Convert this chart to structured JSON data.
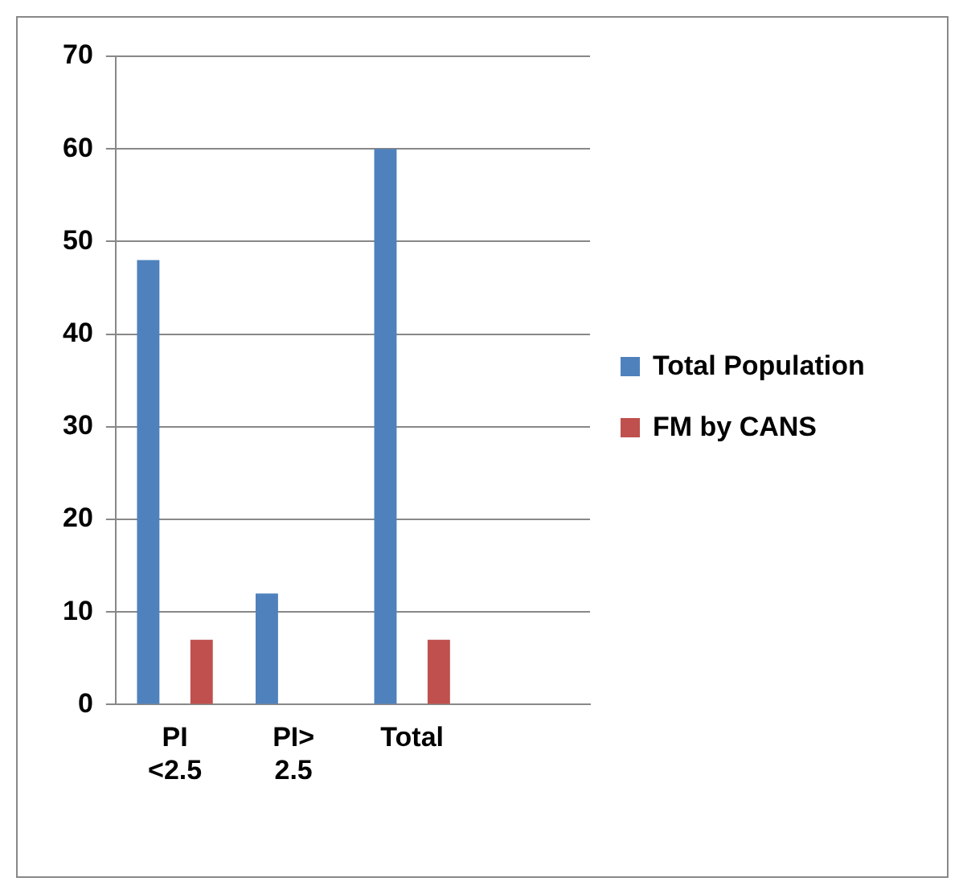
{
  "chart_data": {
    "type": "bar",
    "categories": [
      "PI <2.5",
      "PI> 2.5",
      "Total",
      null
    ],
    "series": [
      {
        "name": "Total Population",
        "color": "#4f81bd",
        "values": [
          48,
          12,
          60,
          null
        ]
      },
      {
        "name": "FM by CANS",
        "color": "#c0504d",
        "values": [
          7,
          null,
          7,
          null
        ]
      }
    ],
    "ylim": [
      0,
      70
    ],
    "yticks": [
      0,
      10,
      20,
      30,
      40,
      50,
      60,
      70
    ],
    "grid": "y",
    "legend": "right"
  }
}
